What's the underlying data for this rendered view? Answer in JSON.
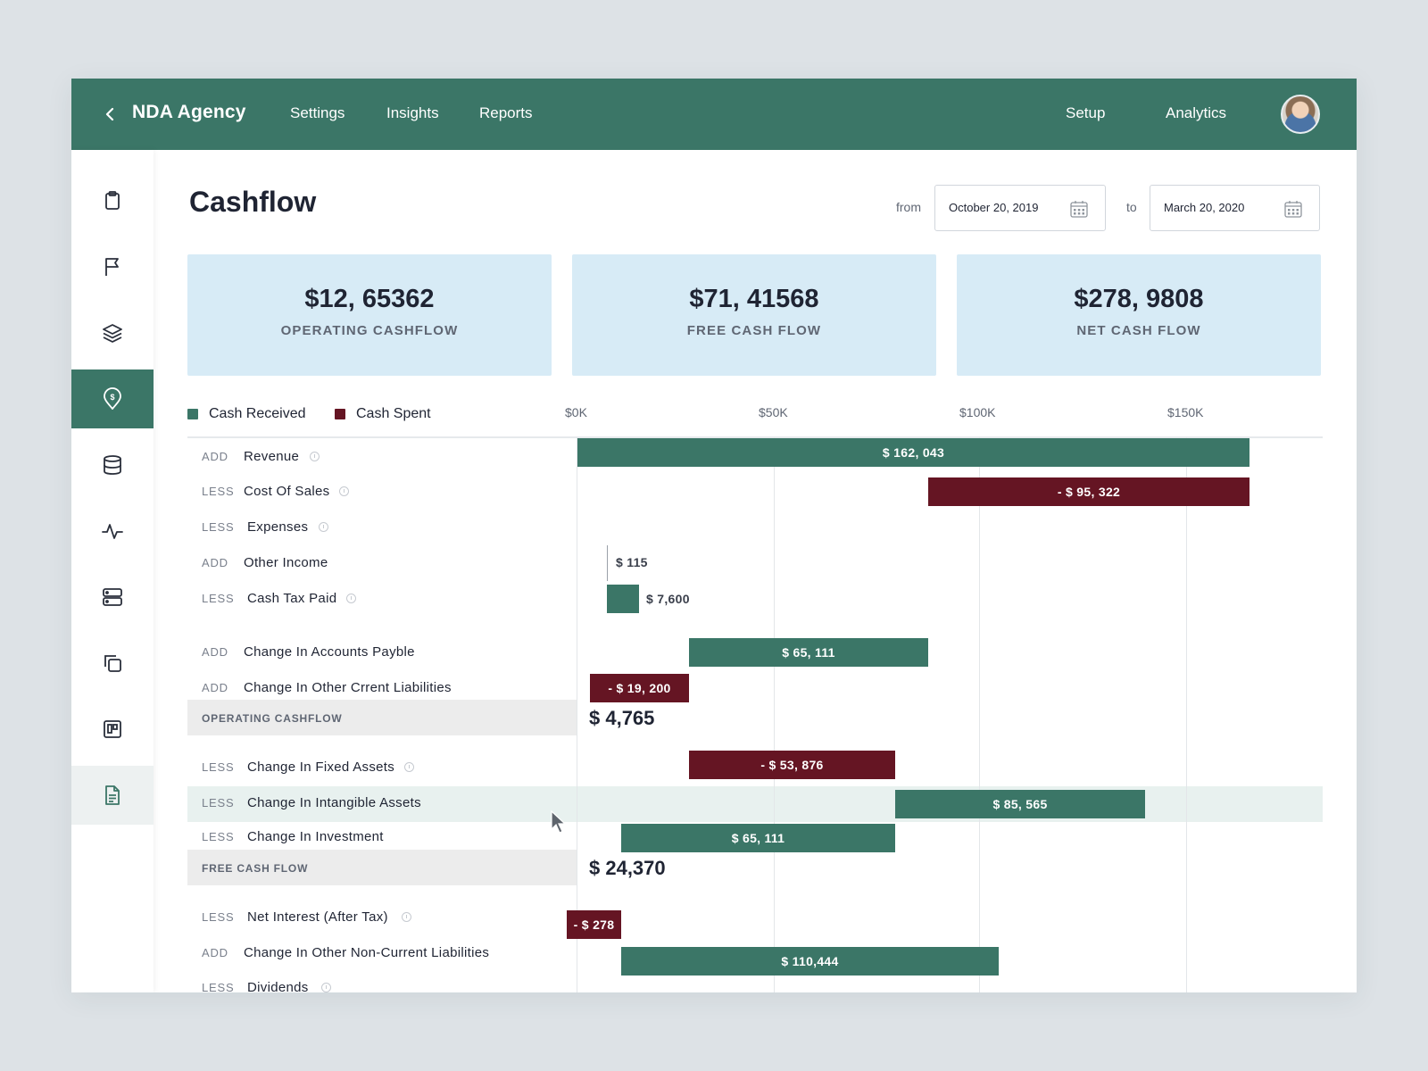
{
  "colors": {
    "brand": "#3b7667",
    "positive": "#3b7667",
    "negative": "#651523",
    "kpi_bg": "#d7ebf6",
    "background": "#dde2e6"
  },
  "topbar": {
    "back_icon": "chevron-left-icon",
    "brand": "NDA Agency",
    "nav": [
      "Settings",
      "Insights",
      "Reports"
    ],
    "right_nav": [
      "Setup",
      "Analytics"
    ],
    "avatar": "user-avatar"
  },
  "sidebar": {
    "icons": [
      "clipboard-icon",
      "flag-icon",
      "layers-icon",
      "dollar-pin-icon",
      "database-icon",
      "activity-icon",
      "server-icon",
      "copy-icon",
      "kanban-icon",
      "document-icon"
    ],
    "active": "dollar-pin-icon"
  },
  "page": {
    "title": "Cashflow",
    "from_label": "from",
    "from_date": "October 20, 2019",
    "to_label": "to",
    "to_date": "March 20, 2020"
  },
  "kpis": [
    {
      "value": "$12, 65362",
      "label": "OPERATING CASHFLOW"
    },
    {
      "value": "$71, 41568",
      "label": "FREE CASH FLOW"
    },
    {
      "value": "$278, 9808",
      "label": "NET CASH FLOW"
    }
  ],
  "legend": {
    "received": "Cash Received",
    "spent": "Cash Spent"
  },
  "axis": {
    "ticks": [
      "$0K",
      "$50K",
      "$100K",
      "$150K"
    ]
  },
  "rows": [
    {
      "type": "ADD",
      "label": "Revenue",
      "info": true,
      "bar_label": "$ 162, 043"
    },
    {
      "type": "LESS",
      "label": "Cost Of Sales",
      "info": true,
      "bar_label": "- $ 95, 322"
    },
    {
      "type": "LESS",
      "label": "Expenses",
      "info": true
    },
    {
      "type": "ADD",
      "label": "Other Income",
      "info": false,
      "bar_label": "$ 115"
    },
    {
      "type": "LESS",
      "label": "Cash Tax Paid",
      "info": true,
      "bar_label": "$ 7,600"
    },
    {
      "type": "ADD",
      "label": "Change In Accounts Payble",
      "info": false,
      "bar_label": "$ 65, 111"
    },
    {
      "type": "ADD",
      "label": "Change In Other Crrent Liabilities",
      "info": false,
      "bar_label": "- $ 19, 200"
    },
    {
      "type": "LESS",
      "label": "Change In Fixed Assets",
      "info": true,
      "bar_label": "- $ 53, 876"
    },
    {
      "type": "LESS",
      "label": "Change In Intangible Assets",
      "info": false,
      "bar_label": "$ 85, 565"
    },
    {
      "type": "LESS",
      "label": "Change In Investment",
      "info": false,
      "bar_label": "$ 65, 111"
    },
    {
      "type": "LESS",
      "label": "Net Interest (After Tax)",
      "info": true,
      "bar_label": "- $ 278"
    },
    {
      "type": "ADD",
      "label": "Change In Other Non-Current Liabilities",
      "info": false,
      "bar_label": "$ 110,444"
    },
    {
      "type": "LESS",
      "label": "Dividends",
      "info": true
    }
  ],
  "sections": [
    {
      "label": "OPERATING CASHFLOW",
      "value": "$ 4,765"
    },
    {
      "label": "FREE CASH FLOW",
      "value": "$ 24,370"
    }
  ]
}
